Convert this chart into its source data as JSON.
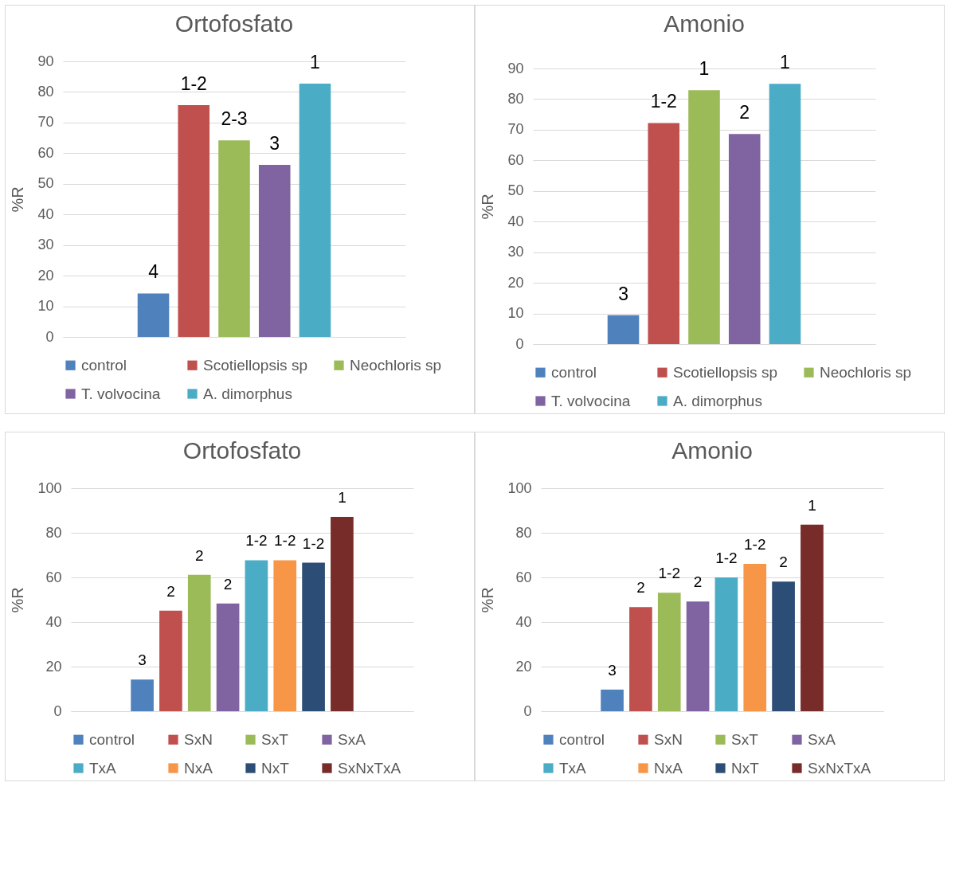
{
  "chart_data": [
    {
      "type": "bar",
      "title": "Ortofosfato",
      "ylabel": "%R",
      "categories": [
        null
      ],
      "ylim": [
        0,
        90
      ],
      "yticks": [
        0,
        10,
        20,
        30,
        40,
        50,
        60,
        70,
        80,
        90
      ],
      "grid": "y",
      "legend": "bottom",
      "series": [
        {
          "name": "control",
          "color": "#4f81bd",
          "values": [
            14.2
          ]
        },
        {
          "name": "Scotiellopsis sp",
          "color": "#c0504d",
          "values": [
            75.7
          ]
        },
        {
          "name": "Neochloris sp",
          "color": "#9bbb59",
          "values": [
            64.2
          ]
        },
        {
          "name": "T. volvocina",
          "color": "#8064a2",
          "values": [
            56.2
          ]
        },
        {
          "name": "A. dimorphus",
          "color": "#4bacc6",
          "values": [
            82.7
          ]
        }
      ],
      "annotations": [
        "4",
        "1-2",
        "2-3",
        "3",
        "1"
      ]
    },
    {
      "type": "bar",
      "title": "Amonio",
      "ylabel": "%R",
      "categories": [
        null
      ],
      "ylim": [
        0,
        90
      ],
      "yticks": [
        0,
        10,
        20,
        30,
        40,
        50,
        60,
        70,
        80,
        90
      ],
      "grid": "y",
      "legend": "bottom",
      "series": [
        {
          "name": "control",
          "color": "#4f81bd",
          "values": [
            9.4
          ]
        },
        {
          "name": "Scotiellopsis sp",
          "color": "#c0504d",
          "values": [
            72.2
          ]
        },
        {
          "name": "Neochloris sp",
          "color": "#9bbb59",
          "values": [
            82.9
          ]
        },
        {
          "name": "T. volvocina",
          "color": "#8064a2",
          "values": [
            68.6
          ]
        },
        {
          "name": "A. dimorphus",
          "color": "#4bacc6",
          "values": [
            85.0
          ]
        }
      ],
      "annotations": [
        "3",
        "1-2",
        "1",
        "2",
        "1"
      ]
    },
    {
      "type": "bar",
      "title": "Ortofosfato",
      "ylabel": "%R",
      "categories": [
        null
      ],
      "ylim": [
        0,
        100
      ],
      "yticks": [
        0,
        20,
        40,
        60,
        80,
        100
      ],
      "grid": "y",
      "legend": "bottom",
      "series": [
        {
          "name": "control",
          "color": "#4f81bd",
          "values": [
            14.2
          ]
        },
        {
          "name": "SxN",
          "color": "#c0504d",
          "values": [
            45.1
          ]
        },
        {
          "name": "SxT",
          "color": "#9bbb59",
          "values": [
            61.2
          ]
        },
        {
          "name": "SxA",
          "color": "#8064a2",
          "values": [
            48.3
          ]
        },
        {
          "name": "TxA",
          "color": "#4bacc6",
          "values": [
            67.7
          ]
        },
        {
          "name": "NxA",
          "color": "#f79646",
          "values": [
            67.7
          ]
        },
        {
          "name": "NxT",
          "color": "#2c4d75",
          "values": [
            66.6
          ]
        },
        {
          "name": "SxNxTxA",
          "color": "#772c2a",
          "values": [
            87.1
          ]
        }
      ],
      "annotations": [
        "3",
        "2",
        "2",
        "2",
        "1-2",
        "1-2",
        "1-2",
        "1"
      ]
    },
    {
      "type": "bar",
      "title": "Amonio",
      "ylabel": "%R",
      "categories": [
        null
      ],
      "ylim": [
        0,
        100
      ],
      "yticks": [
        0,
        20,
        40,
        60,
        80,
        100
      ],
      "grid": "y",
      "legend": "bottom",
      "series": [
        {
          "name": "control",
          "color": "#4f81bd",
          "values": [
            9.7
          ]
        },
        {
          "name": "SxN",
          "color": "#c0504d",
          "values": [
            46.7
          ]
        },
        {
          "name": "SxT",
          "color": "#9bbb59",
          "values": [
            53.1
          ]
        },
        {
          "name": "SxA",
          "color": "#8064a2",
          "values": [
            49.2
          ]
        },
        {
          "name": "TxA",
          "color": "#4bacc6",
          "values": [
            60.0
          ]
        },
        {
          "name": "NxA",
          "color": "#f79646",
          "values": [
            66.1
          ]
        },
        {
          "name": "NxT",
          "color": "#2c4d75",
          "values": [
            58.1
          ]
        },
        {
          "name": "SxNxTxA",
          "color": "#772c2a",
          "values": [
            83.7
          ]
        }
      ],
      "annotations": [
        "3",
        "2",
        "1-2",
        "2",
        "1-2",
        "1-2",
        "2",
        "1"
      ]
    }
  ]
}
